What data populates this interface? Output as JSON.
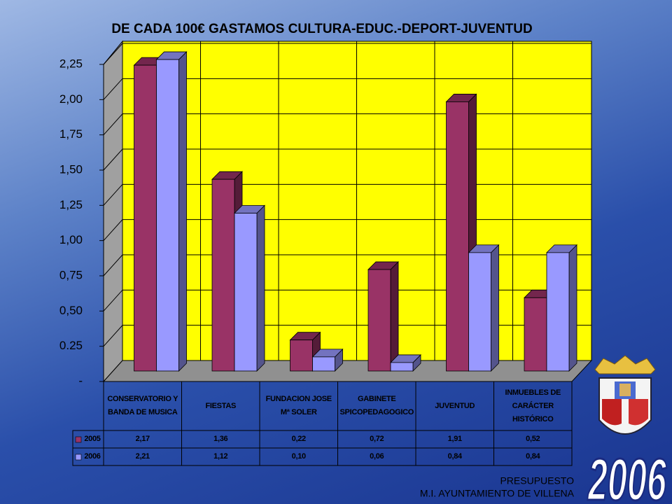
{
  "chart_data": {
    "type": "bar3d",
    "title": "DE CADA 100€ GASTAMOS CULTURA-EDUC.-DEPORT-JUVENTUD",
    "categories": [
      "CONSERVATORIO Y BANDA DE MUSICA",
      "FIESTAS",
      "FUNDACION JOSE Mª SOLER",
      "GABINETE SPICOPEDAGOGICO",
      "JUVENTUD",
      "INMUEBLES DE CARÁCTER HISTÓRICO"
    ],
    "series": [
      {
        "name": "2005",
        "color": "#993366",
        "values": [
          2.17,
          1.36,
          0.22,
          0.72,
          1.91,
          0.52
        ],
        "value_labels": [
          "2,17",
          "1,36",
          "0,22",
          "0,72",
          "1,91",
          "0,52"
        ]
      },
      {
        "name": "2006",
        "color": "#9999ff",
        "values": [
          2.21,
          1.12,
          0.1,
          0.06,
          0.84,
          0.84
        ],
        "value_labels": [
          "2,21",
          "1,12",
          "0,10",
          "0,06",
          "0,84",
          "0,84"
        ]
      }
    ],
    "ylim": [
      0,
      2.25
    ],
    "yticks": [
      {
        "value": 0,
        "label": "-"
      },
      {
        "value": 0.25,
        "label": "0.25"
      },
      {
        "value": 0.5,
        "label": "0,50"
      },
      {
        "value": 0.75,
        "label": "0,75"
      },
      {
        "value": 1,
        "label": "1,00"
      },
      {
        "value": 1.25,
        "label": "1,25"
      },
      {
        "value": 1.5,
        "label": "1,50"
      },
      {
        "value": 1.75,
        "label": "1,75"
      },
      {
        "value": 2,
        "label": "2,00"
      },
      {
        "value": 2.25,
        "label": "2,25"
      }
    ],
    "grid": true
  },
  "footer": {
    "line1": "PRESUPUESTO",
    "line2": "M.I. AYUNTAMIENTO DE VILLENA",
    "year": "2006"
  }
}
